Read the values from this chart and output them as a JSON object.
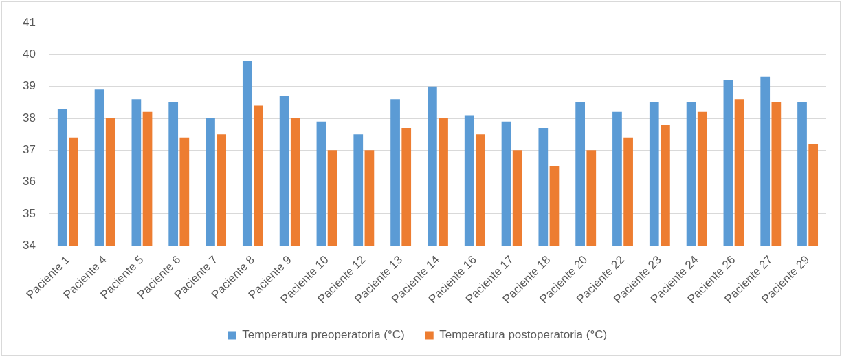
{
  "chart_data": {
    "type": "bar",
    "categories": [
      "Paciente 1",
      "Paciente 4",
      "Paciente 5",
      "Paciente 6",
      "Paciente 7",
      "Paciente 8",
      "Paciente 9",
      "Paciente 10",
      "Paciente 12",
      "Paciente 13",
      "Paciente 14",
      "Paciente 16",
      "Paciente 17",
      "Paciente 18",
      "Paciente 20",
      "Paciente 22",
      "Paciente 23",
      "Paciente 24",
      "Paciente 26",
      "Paciente 27",
      "Paciente 29"
    ],
    "series": [
      {
        "name": "Temperatura preoperatoria (°C)",
        "color": "#5b9bd5",
        "values": [
          38.3,
          38.9,
          38.6,
          38.5,
          38.0,
          39.8,
          38.7,
          37.9,
          37.5,
          38.6,
          39.0,
          38.1,
          37.9,
          37.7,
          38.5,
          38.2,
          38.5,
          38.5,
          39.2,
          39.3,
          38.5
        ]
      },
      {
        "name": "Temperatura postoperatoria (°C)",
        "color": "#ed7d31",
        "values": [
          37.4,
          38.0,
          38.2,
          37.4,
          37.5,
          38.4,
          38.0,
          37.0,
          37.0,
          37.7,
          38.0,
          37.5,
          37.0,
          36.5,
          37.0,
          37.4,
          37.8,
          38.2,
          38.6,
          38.5,
          37.2
        ]
      }
    ],
    "ylim": [
      34,
      41
    ],
    "yticks": [
      34,
      35,
      36,
      37,
      38,
      39,
      40,
      41
    ],
    "grid": "y",
    "legend": "bottom"
  }
}
